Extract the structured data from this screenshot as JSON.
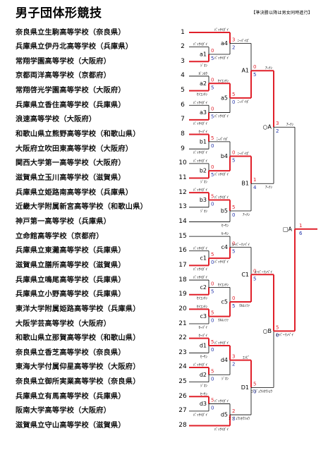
{
  "title": "男子団体形競技",
  "note": "【準決勝以降は男女同時進行】",
  "teams": [
    {
      "seed": "1",
      "name": "奈良県立生駒高等学校（奈良県）"
    },
    {
      "seed": "2",
      "name": "兵庫県立伊丹北高等学校（兵庫県）"
    },
    {
      "seed": "3",
      "name": "常翔学園高等学校（大阪府）"
    },
    {
      "seed": "4",
      "name": "京都両洋高等学校（京都府）"
    },
    {
      "seed": "5",
      "name": "常翔啓光学園高等学校（大阪府）"
    },
    {
      "seed": "6",
      "name": "兵庫県立香住高等学校（兵庫県）"
    },
    {
      "seed": "7",
      "name": "浪速高等学校（大阪府）"
    },
    {
      "seed": "8",
      "name": "和歌山県立熊野高等学校（和歌山県）"
    },
    {
      "seed": "9",
      "name": "大阪府立吹田東高等学校（大阪府）"
    },
    {
      "seed": "10",
      "name": "関西大学第一高等学校（大阪府）"
    },
    {
      "seed": "11",
      "name": "滋賀県立玉川高等学校（滋賀県）"
    },
    {
      "seed": "12",
      "name": "兵庫県立姫路南高等学校（兵庫県）"
    },
    {
      "seed": "13",
      "name": "近畿大学附属新宮高等学校（和歌山県）"
    },
    {
      "seed": "14",
      "name": "神戸第一高等学校（兵庫県）"
    },
    {
      "seed": "15",
      "name": "立命館高等学校（京都府）"
    },
    {
      "seed": "16",
      "name": "兵庫県立東灘高等学校（兵庫県）"
    },
    {
      "seed": "17",
      "name": "滋賀県立膳所高等学校（滋賀県）"
    },
    {
      "seed": "18",
      "name": "兵庫県立鳴尾高等学校（兵庫県）"
    },
    {
      "seed": "19",
      "name": "兵庫県立小野高等学校（兵庫県）"
    },
    {
      "seed": "20",
      "name": "東洋大学附属姫路高等学校（兵庫県）"
    },
    {
      "seed": "21",
      "name": "大阪学芸高等学校（大阪府）"
    },
    {
      "seed": "22",
      "name": "和歌山県立那賀高等学校（和歌山県）"
    },
    {
      "seed": "23",
      "name": "奈良県立香芝高等学校（奈良県）"
    },
    {
      "seed": "24",
      "name": "東海大学付属仰星高等学校（大阪府）"
    },
    {
      "seed": "25",
      "name": "奈良県立御所実業高等学校（奈良県）"
    },
    {
      "seed": "26",
      "name": "兵庫県立有馬高等学校（兵庫県）"
    },
    {
      "seed": "27",
      "name": "阪南大学高等学校（大阪府）"
    },
    {
      "seed": "28",
      "name": "滋賀県立守山高等学校（滋賀県）"
    }
  ],
  "match_labels": {
    "a1": "a1",
    "a2": "a2",
    "a3": "a3",
    "a4": "a4",
    "a5": "a5",
    "b1": "b1",
    "b2": "b2",
    "b3": "b3",
    "b4": "b4",
    "b5": "b5",
    "c1": "c1",
    "c2": "c2",
    "c3": "c3",
    "c4": "c4",
    "c5": "c5",
    "d1": "d1",
    "d2": "d2",
    "d3": "d3",
    "d4": "d4",
    "d5": "d5",
    "A1": "A1",
    "B1": "B1",
    "C1": "C1",
    "D1": "D1",
    "OA": "○A",
    "OB": "○B",
    "SA": "□A"
  },
  "kata_names": {
    "passai": "ﾊﾟｯｻｲﾀﾞｲ",
    "jion": "ｼﾞｵﾝ",
    "kururunfa": "ｸﾙﾙﾝﾌｧ",
    "seienchin": "ｾｲｴﾝﾁﾝ",
    "seisan": "ｾｰｻﾝ",
    "seipai": "ｾｰﾊﾟｲ",
    "gankaku": "ｶﾞﾝｶｸ",
    "anan": "ｱｰﾅﾝ",
    "nipaipo": "ﾆｰﾊﾟｲﾎﾟ",
    "suparinpei": "ｽｰﾊﾟｰﾘﾝﾍﾟｲ",
    "empi": "ｴﾝﾋﾟ",
    "gojushiho": "ｺﾞｼﾞｭｳｼﾎｳｼｮｳ",
    "ryuei": "留亀"
  },
  "scores": {
    "a1_top": "0",
    "a1_bot": "5",
    "a4_top": "3",
    "a4_bot": "2",
    "a2_top": "0",
    "a2_bot": "5",
    "a3_top": "0",
    "a3_bot": "5",
    "a5_top": "5",
    "a5_bot": "0",
    "A1_top": "0",
    "A1_bot": "5",
    "b1_top": "5",
    "b1_bot": "0",
    "b2_top": "0",
    "b2_bot": "5",
    "b4_top": "0",
    "b4_bot": "5",
    "b3_top": "5",
    "b3_bot": "0",
    "b5_top": "5",
    "b5_bot": "0",
    "B1_top": "1",
    "B1_bot": "4",
    "OA_top": "3",
    "OA_bot": "2",
    "c4_top": "0",
    "c4_bot": "5",
    "c1_top": "5",
    "c1_bot": "0",
    "c2_top": "0",
    "c2_bot": "5",
    "c3_top": "5",
    "c3_bot": "0",
    "c5_top": "0",
    "c5_bot": "5",
    "C1_top": "0",
    "C1_bot": "5",
    "d1_top": "5",
    "d1_bot": "0",
    "d4_top": "3",
    "d4_bot": "2",
    "d2_top": "5",
    "d2_bot": "0",
    "d3_top": "5",
    "d3_bot": "0",
    "d5_top": "2",
    "d5_bot": "3",
    "D1_top": "5",
    "D1_bot": "0",
    "OB_top": "5",
    "OB_bot": "0",
    "final_top": "1",
    "final_bot": "6",
    "semi_top": "1",
    "semi_bot": "4"
  }
}
